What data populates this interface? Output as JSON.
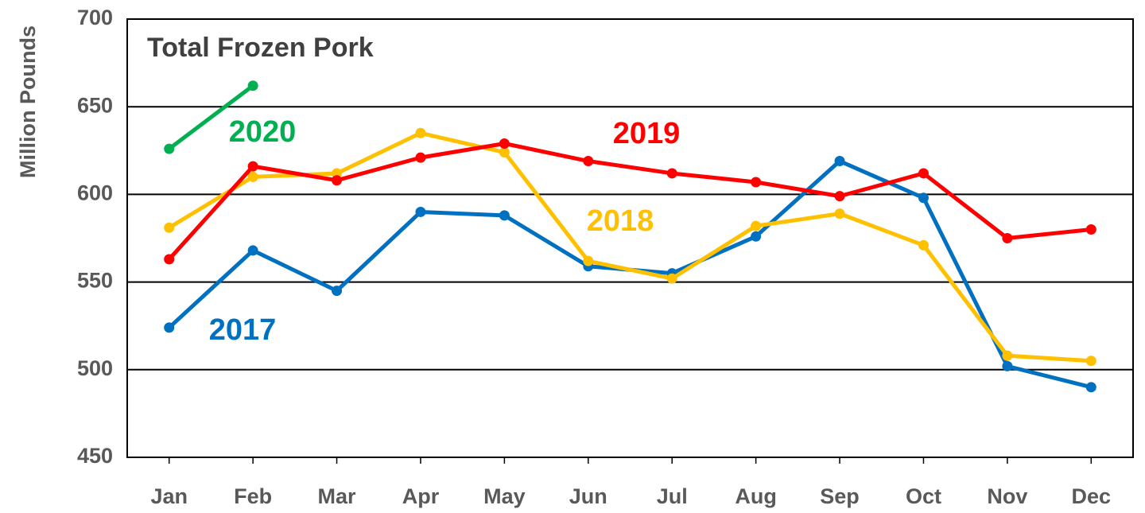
{
  "chart_data": {
    "type": "line",
    "title": "Total Frozen Pork",
    "y_label": "Million Pounds",
    "categories": [
      "Jan",
      "Feb",
      "Mar",
      "Apr",
      "May",
      "Jun",
      "Jul",
      "Aug",
      "Sep",
      "Oct",
      "Nov",
      "Dec"
    ],
    "series": [
      {
        "name": "2017",
        "color": "#0070c0",
        "values": [
          524,
          568,
          545,
          590,
          588,
          559,
          555,
          576,
          619,
          598,
          502,
          490
        ]
      },
      {
        "name": "2018",
        "color": "#ffc000",
        "values": [
          581,
          610,
          612,
          635,
          624,
          562,
          552,
          582,
          589,
          571,
          508,
          505
        ]
      },
      {
        "name": "2019",
        "color": "#ff0000",
        "values": [
          563,
          616,
          608,
          621,
          629,
          619,
          612,
          607,
          599,
          612,
          575,
          580
        ]
      },
      {
        "name": "2020",
        "color": "#00b050",
        "values": [
          626,
          662,
          null,
          null,
          null,
          null,
          null,
          null,
          null,
          null,
          null,
          null
        ]
      }
    ],
    "ylim": [
      450,
      700
    ],
    "yticks": [
      450,
      500,
      550,
      600,
      650,
      700
    ],
    "grid": true
  }
}
